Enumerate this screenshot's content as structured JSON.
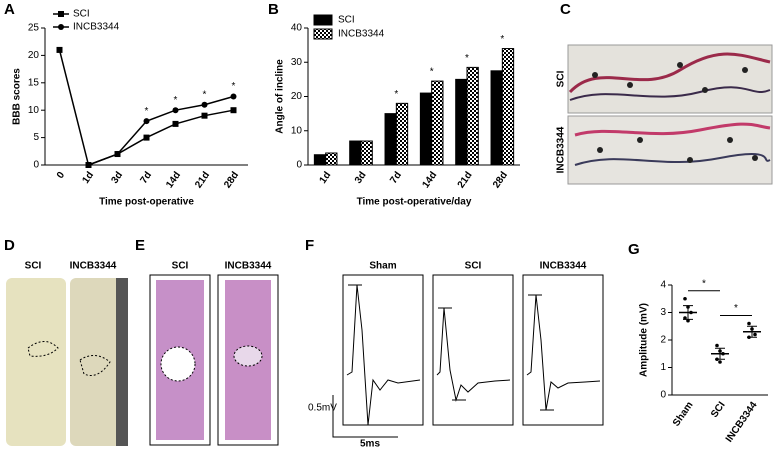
{
  "panels": [
    "A",
    "B",
    "C",
    "D",
    "E",
    "F",
    "G"
  ],
  "chart_data": [
    {
      "type": "line",
      "ylabel": "BBB scores",
      "xlabel": "Time post-operative",
      "categories": [
        "0",
        "1d",
        "3d",
        "7d",
        "14d",
        "21d",
        "28d"
      ],
      "ylim": [
        0,
        25
      ],
      "yticks": [
        0,
        5,
        10,
        15,
        20,
        25
      ],
      "series": [
        {
          "name": "SCI",
          "color": "#000000",
          "marker": "square",
          "values": [
            21,
            0,
            2,
            5,
            7.5,
            9,
            10
          ]
        },
        {
          "name": "INCB3344",
          "color": "#000000",
          "marker": "circle",
          "values": [
            null,
            0,
            2,
            8,
            10,
            11,
            12.5
          ]
        }
      ],
      "significance": [
        null,
        null,
        null,
        "*",
        "*",
        "*",
        "*"
      ]
    },
    {
      "type": "bar",
      "ylabel": "Angle of incline",
      "xlabel": "Time post-operative/day",
      "categories": [
        "1d",
        "3d",
        "7d",
        "14d",
        "21d",
        "28d"
      ],
      "ylim": [
        0,
        40
      ],
      "yticks": [
        0,
        10,
        20,
        30,
        40
      ],
      "series": [
        {
          "name": "SCI",
          "color": "#000000",
          "hatch": false,
          "values": [
            3,
            7,
            15,
            21,
            25,
            27.5
          ]
        },
        {
          "name": "INCB3344",
          "color": "#000000",
          "hatch": true,
          "values": [
            3.5,
            7,
            18,
            24.5,
            28.5,
            34
          ]
        }
      ],
      "significance": [
        null,
        null,
        "*",
        "*",
        "*",
        "*"
      ]
    },
    {
      "type": "dotplot",
      "ylabel": "Amplitude (mV)",
      "categories": [
        "Sham",
        "SCI",
        "INCB3344"
      ],
      "ylim": [
        0,
        4
      ],
      "yticks": [
        0,
        1,
        2,
        3,
        4
      ],
      "color": "#000000",
      "points": [
        [
          3.5,
          3.2,
          3.0,
          2.8,
          2.7
        ],
        [
          1.8,
          1.6,
          1.5,
          1.3,
          1.2
        ],
        [
          2.6,
          2.4,
          2.2,
          2.1
        ]
      ],
      "means": [
        3.0,
        1.5,
        2.3
      ],
      "errors": [
        0.25,
        0.2,
        0.2
      ],
      "comparisons": [
        {
          "groups": [
            0,
            1
          ],
          "label": "*"
        },
        {
          "groups": [
            1,
            2
          ],
          "label": "*"
        }
      ]
    }
  ],
  "footprints": {
    "labels": [
      "SCI",
      "INCB3344"
    ]
  },
  "spinal_cord": {
    "labels": [
      "SCI",
      "INCB3344"
    ]
  },
  "histology": {
    "labels": [
      "SCI",
      "INCB3344"
    ]
  },
  "emg": {
    "labels": [
      "Sham",
      "SCI",
      "INCB3344"
    ],
    "scale_y": "0.5mV",
    "scale_x": "5ms"
  }
}
